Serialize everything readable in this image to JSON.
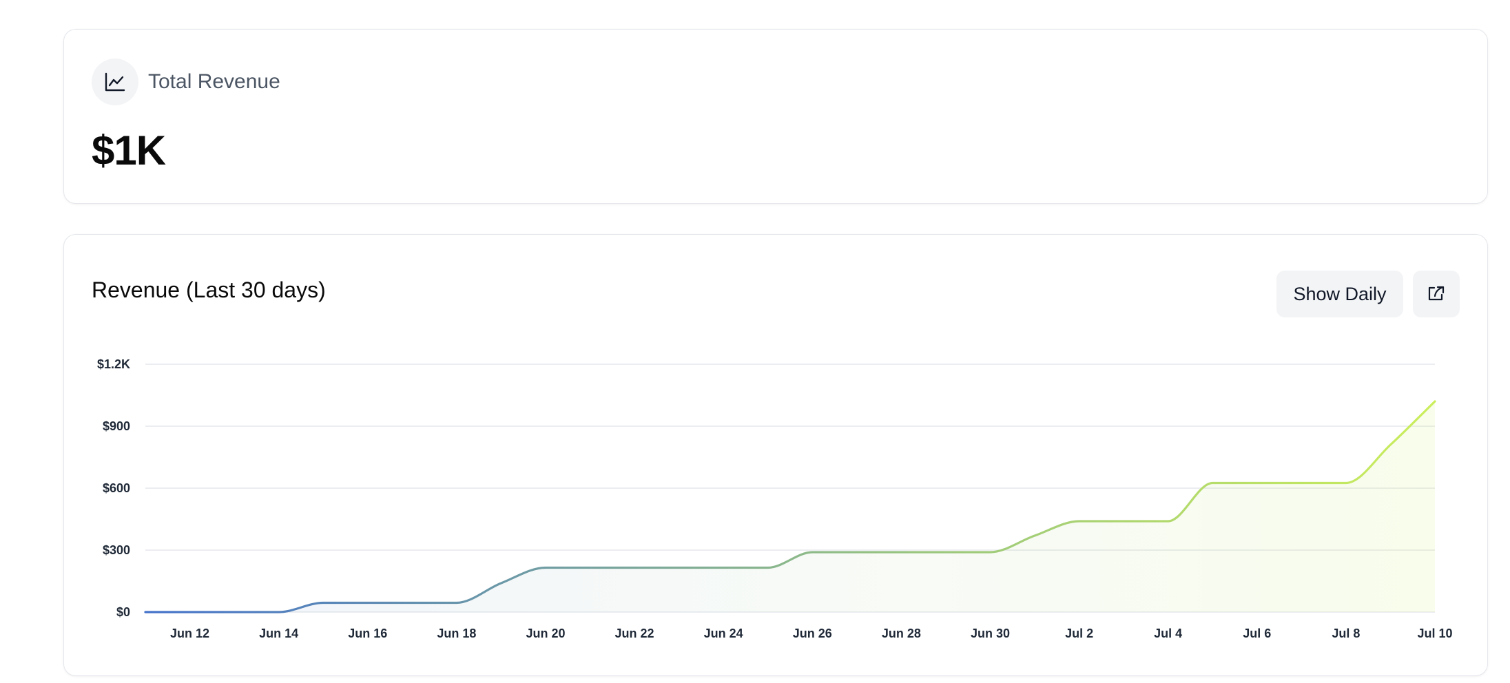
{
  "summary": {
    "icon": "line-chart-icon",
    "label": "Total Revenue",
    "value": "$1K"
  },
  "chart_panel": {
    "title": "Revenue (Last 30 days)",
    "show_daily_label": "Show Daily",
    "share_icon": "share-icon"
  },
  "chart_data": {
    "type": "area",
    "title": "Revenue (Last 30 days)",
    "xlabel": "",
    "ylabel": "",
    "x_ticks": [
      "Jun 12",
      "Jun 14",
      "Jun 16",
      "Jun 18",
      "Jun 20",
      "Jun 22",
      "Jun 24",
      "Jun 26",
      "Jun 28",
      "Jun 30",
      "Jul 2",
      "Jul 4",
      "Jul 6",
      "Jul 8",
      "Jul 10"
    ],
    "y_ticks": [
      "$0",
      "$300",
      "$600",
      "$900",
      "$1.2K"
    ],
    "ylim": [
      0,
      1200
    ],
    "grid": true,
    "colors": {
      "start": "#4472ca",
      "mid": "#9ac67f",
      "end": "#cbee5b",
      "grid": "#e5e7eb"
    },
    "series": [
      {
        "x": [
          "Jun 11",
          "Jun 12",
          "Jun 13",
          "Jun 14",
          "Jun 15",
          "Jun 16",
          "Jun 17",
          "Jun 18",
          "Jun 19",
          "Jun 20",
          "Jun 21",
          "Jun 22",
          "Jun 23",
          "Jun 24",
          "Jun 25",
          "Jun 26",
          "Jun 27",
          "Jun 28",
          "Jun 29",
          "Jun 30",
          "Jul 1",
          "Jul 2",
          "Jul 3",
          "Jul 4",
          "Jul 5",
          "Jul 6",
          "Jul 7",
          "Jul 8",
          "Jul 9",
          "Jul 10"
        ],
        "values": [
          0,
          0,
          0,
          0,
          45,
          45,
          45,
          45,
          140,
          215,
          215,
          215,
          215,
          215,
          215,
          290,
          290,
          290,
          290,
          290,
          370,
          440,
          440,
          440,
          625,
          625,
          625,
          625,
          810,
          1020
        ]
      }
    ]
  }
}
